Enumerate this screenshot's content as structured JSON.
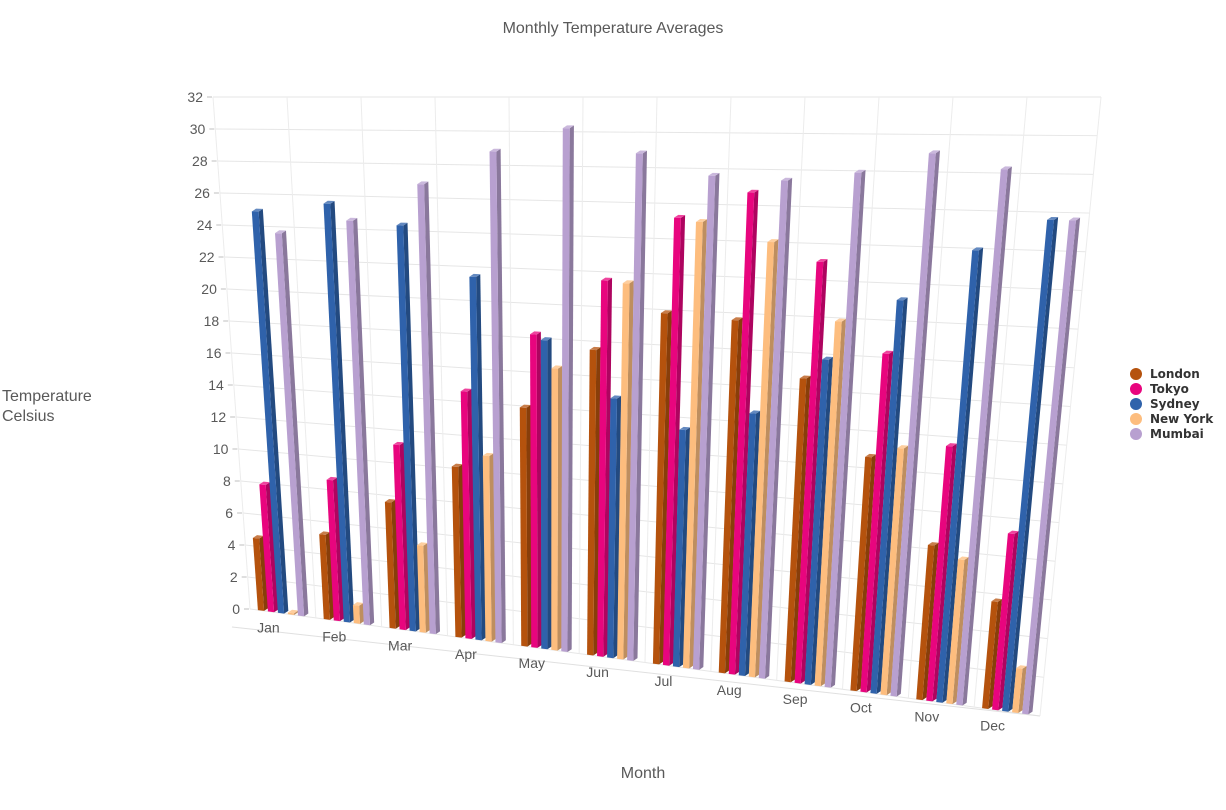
{
  "chart_data": {
    "type": "bar",
    "title": "Monthly Temperature Averages",
    "xlabel": "Month",
    "ylabel": "Temperature Celsius",
    "ylim": [
      0,
      32
    ],
    "yticks": [
      0,
      2,
      4,
      6,
      8,
      10,
      12,
      14,
      16,
      18,
      20,
      22,
      24,
      26,
      28,
      30,
      32
    ],
    "categories": [
      "Jan",
      "Feb",
      "Mar",
      "Apr",
      "May",
      "Jun",
      "Jul",
      "Aug",
      "Sep",
      "Oct",
      "Nov",
      "Dec"
    ],
    "grid": true,
    "legend": "right",
    "series": [
      {
        "name": "London",
        "color": "#b5520d",
        "values": [
          4.5,
          5.2,
          7.6,
          10.1,
          13.9,
          17.5,
          19.8,
          19.6,
          16.6,
          12.6,
          8.2,
          5.6
        ]
      },
      {
        "name": "Tokyo",
        "color": "#e8057e",
        "values": [
          7.9,
          8.6,
          11.1,
          14.6,
          18.2,
          21.5,
          25.2,
          26.7,
          23.0,
          18.2,
          13.5,
          9.2
        ]
      },
      {
        "name": "Sydney",
        "color": "#2f62ab",
        "values": [
          24.9,
          25.5,
          24.3,
          21.4,
          17.9,
          14.8,
          13.3,
          14.5,
          17.7,
          21.1,
          23.9,
          25.6
        ]
      },
      {
        "name": "New York",
        "color": "#fdbd7e",
        "values": [
          0.1,
          1.1,
          5.2,
          10.9,
          16.3,
          21.4,
          25.0,
          24.0,
          19.8,
          13.2,
          7.6,
          2.3
        ]
      },
      {
        "name": "Mumbai",
        "color": "#b8a0d0",
        "values": [
          23.6,
          24.5,
          26.8,
          28.8,
          30.2,
          28.8,
          27.6,
          27.4,
          27.9,
          29.0,
          28.2,
          25.6
        ]
      }
    ]
  }
}
